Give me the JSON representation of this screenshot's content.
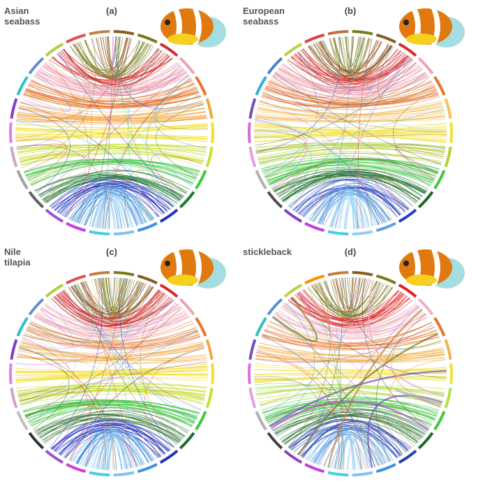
{
  "panels": [
    {
      "label": "(a)",
      "species": [
        "Asian",
        "seabass"
      ]
    },
    {
      "label": "(b)",
      "species": [
        "European",
        "seabass"
      ]
    },
    {
      "label": "(c)",
      "species": [
        "Nile",
        "tilapia"
      ]
    },
    {
      "label": "(d)",
      "species": [
        "stickleback"
      ]
    }
  ]
}
